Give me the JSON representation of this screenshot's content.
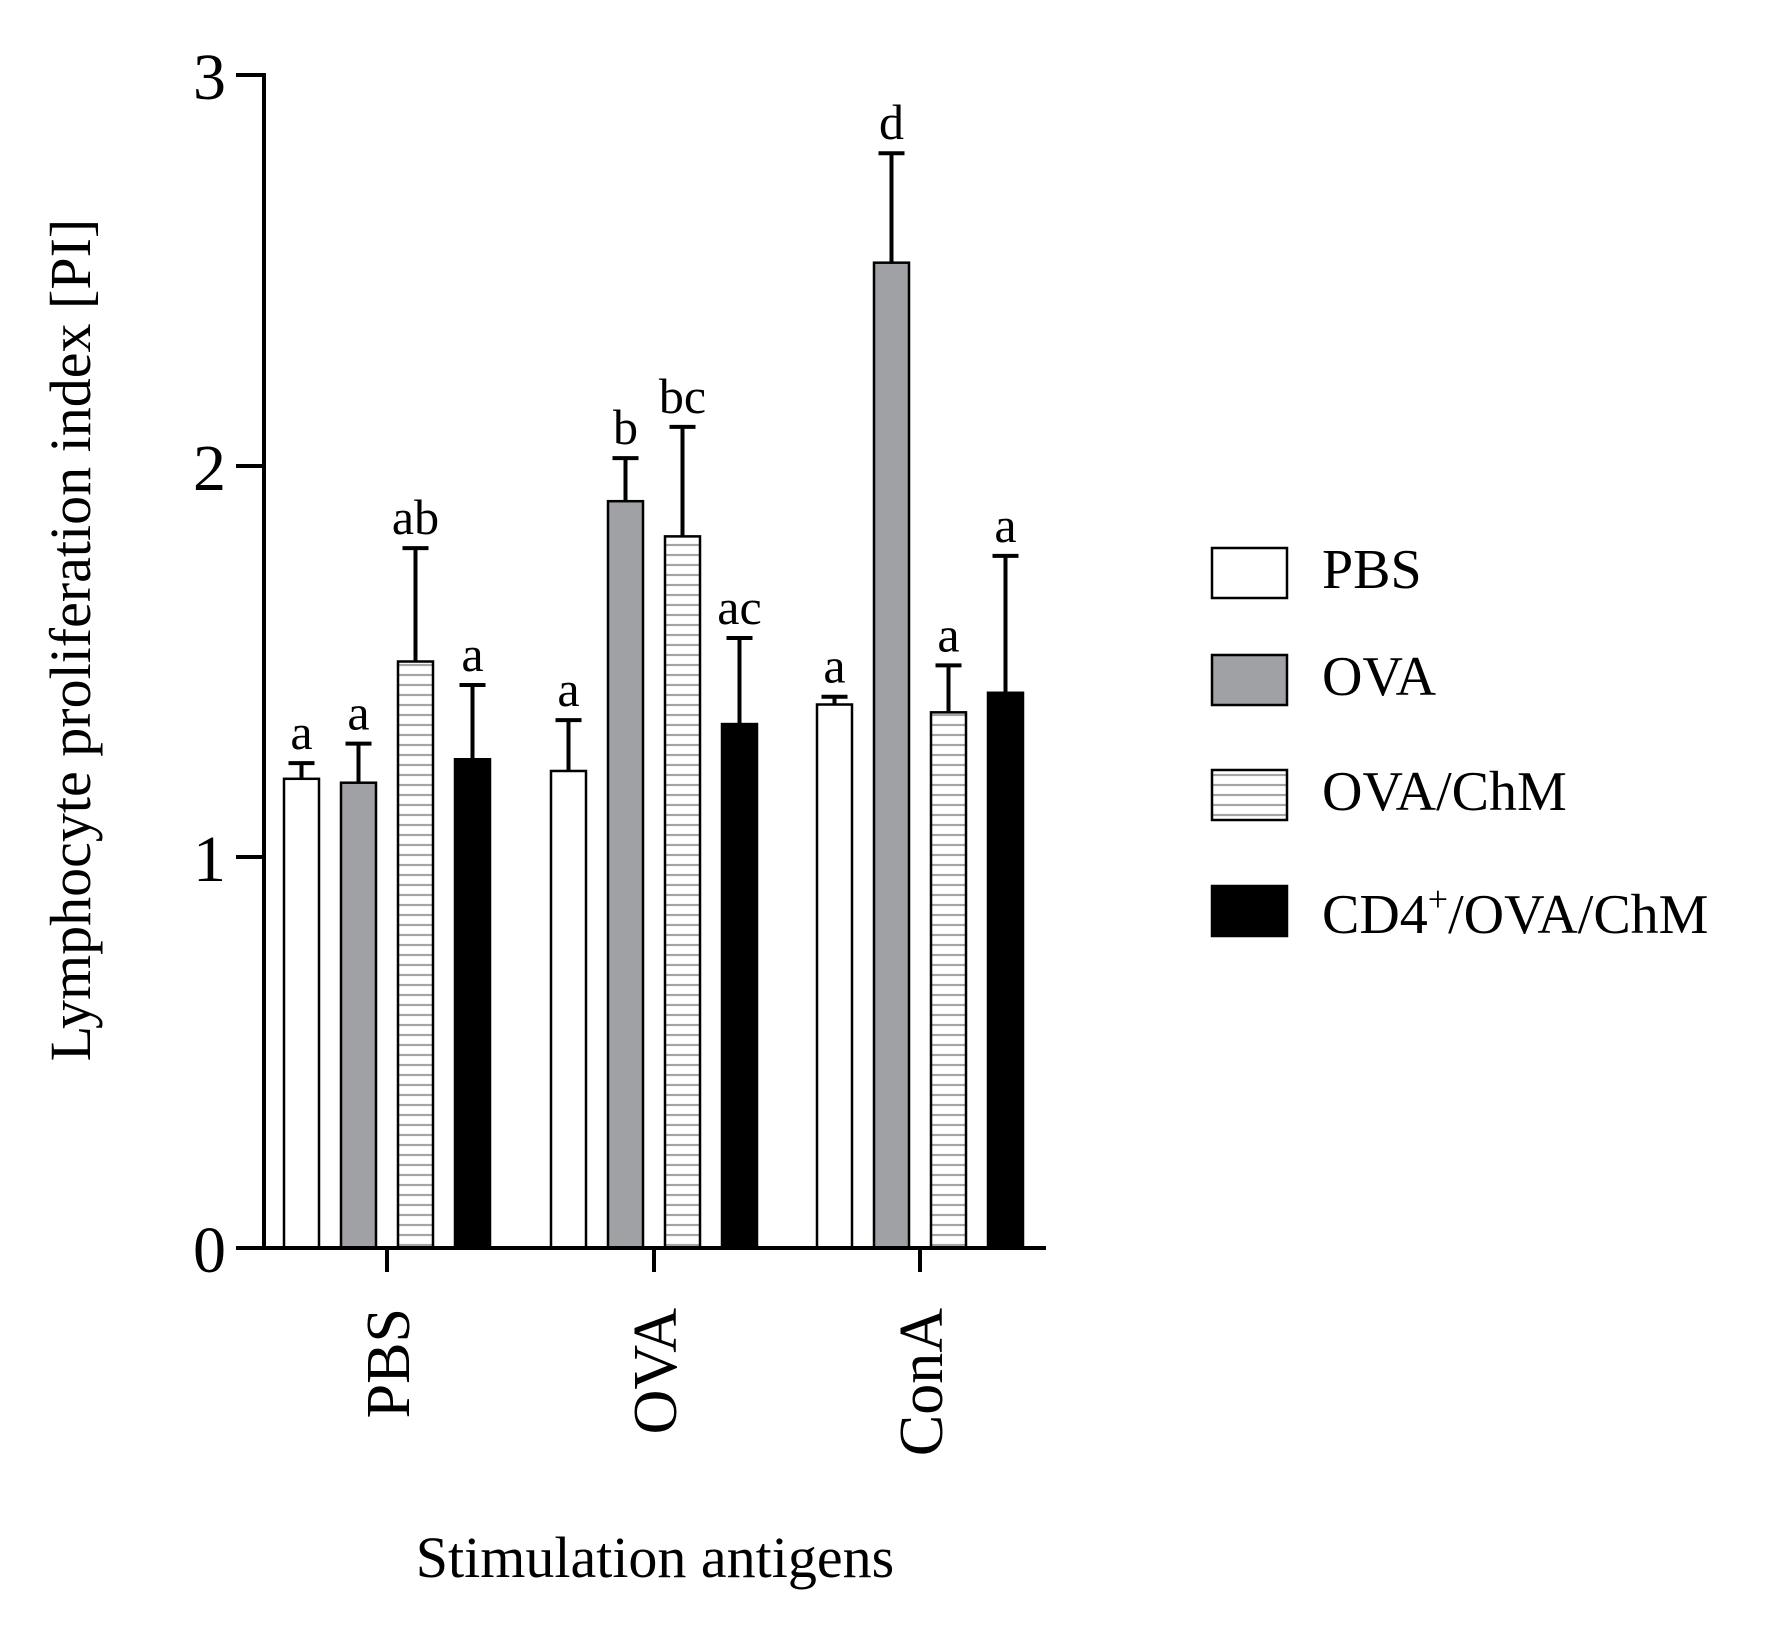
{
  "chart_data": {
    "type": "bar",
    "title": "",
    "xlabel": "Stimulation antigens",
    "ylabel": "Lymphocyte proliferation index [PI]",
    "ylim": [
      0,
      3
    ],
    "yticks": [
      "0",
      "1",
      "2",
      "3"
    ],
    "categories": [
      "PBS",
      "OVA",
      "ConA"
    ],
    "legend_position": "right",
    "series": [
      {
        "name": "PBS",
        "pattern": "white",
        "values": [
          1.2,
          1.22,
          1.39
        ],
        "errors": [
          0.04,
          0.13,
          0.02
        ],
        "letters": [
          "a",
          "a",
          "a"
        ]
      },
      {
        "name": "OVA",
        "pattern": "gray",
        "values": [
          1.19,
          1.91,
          2.52
        ],
        "errors": [
          0.1,
          0.11,
          0.28
        ],
        "letters": [
          "a",
          "b",
          "d"
        ]
      },
      {
        "name": "OVA/ChM",
        "pattern": "striped",
        "values": [
          1.5,
          1.82,
          1.37
        ],
        "errors": [
          0.29,
          0.28,
          0.12
        ],
        "letters": [
          "ab",
          "bc",
          "a"
        ]
      },
      {
        "name": "CD4+/OVA/ChM",
        "legend_main": "CD4",
        "legend_sup": "+",
        "legend_rest": "/OVA/ChM",
        "pattern": "black",
        "values": [
          1.25,
          1.34,
          1.42
        ],
        "errors": [
          0.19,
          0.22,
          0.35
        ],
        "letters": [
          "a",
          "ac",
          "a"
        ]
      }
    ]
  },
  "colors": {
    "white": "#ffffff",
    "gray": "#a0a1a5",
    "stripe_bg": "#ffffff",
    "stripe_line": "#a5a5a5",
    "black": "#000000",
    "axis": "#000000"
  }
}
